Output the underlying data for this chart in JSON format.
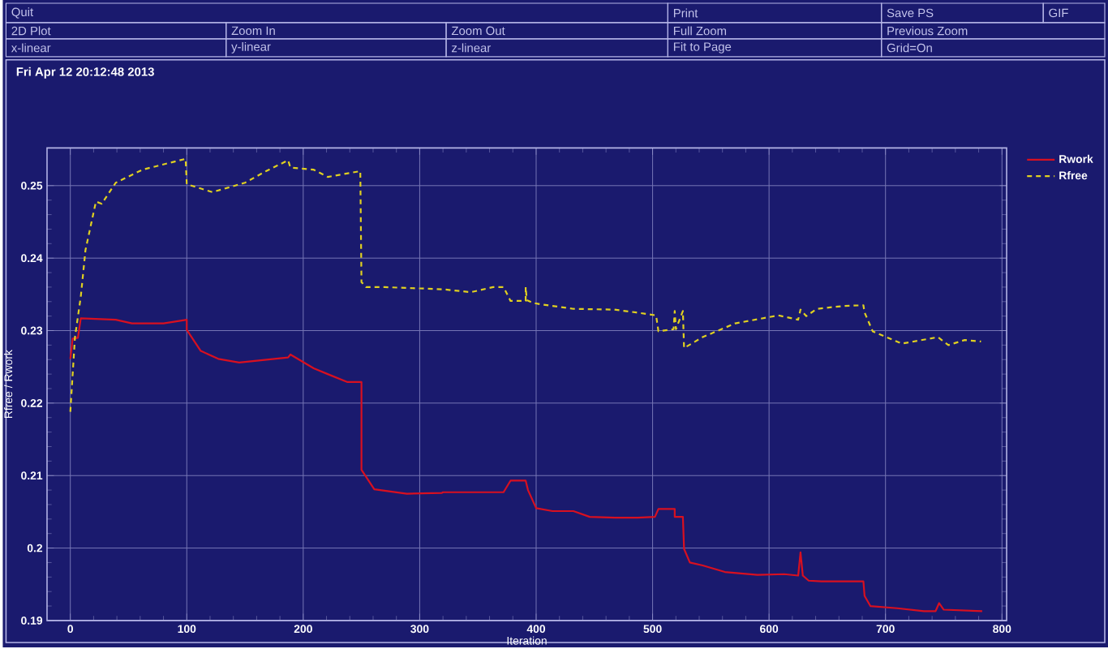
{
  "chart_data": {
    "type": "line",
    "xlabel": "Iteration",
    "ylabel": "Rfree / Rwork",
    "annotations": [
      "Quit",
      "Print",
      "Save PS",
      "GIF",
      "2D Plot",
      "Zoom In",
      "Zoom Out",
      "Full Zoom",
      "Previous Zoom",
      "x-linear",
      "y-linear",
      "z-linear",
      "Fit to Page",
      "Grid=On",
      "Fri Apr 12 20:12:48 2013"
    ],
    "xlim": [
      -20,
      804
    ],
    "ylim": [
      0.19,
      0.2552
    ],
    "xticks": [
      0,
      100,
      200,
      300,
      400,
      500,
      600,
      700,
      800
    ],
    "yticks": [
      0.19,
      0.2,
      0.21,
      0.22,
      0.23,
      0.24,
      0.25
    ],
    "grid": true,
    "legend": "right",
    "series": [
      {
        "name": "Rwork",
        "color": "#d81020",
        "line_style": "solid",
        "x": [
          0,
          2,
          6.5,
          9,
          39,
          53,
          80,
          100,
          100,
          112,
          127,
          145,
          187,
          189,
          209,
          221,
          238,
          250,
          250,
          261,
          289,
          319,
          320,
          363,
          372,
          378,
          391,
          393,
          400,
          414,
          432,
          446,
          468,
          487,
          502,
          505,
          519,
          519,
          526,
          527,
          532,
          543,
          562,
          590,
          613,
          625,
          627,
          629,
          634,
          645,
          681,
          682,
          687,
          710,
          733,
          743,
          746,
          750,
          783
        ],
        "values": [
          0.2261,
          0.2289,
          0.229,
          0.2317,
          0.2315,
          0.231,
          0.231,
          0.2315,
          0.2301,
          0.2272,
          0.2261,
          0.2256,
          0.2263,
          0.2267,
          0.2248,
          0.224,
          0.2229,
          0.2229,
          0.2108,
          0.2081,
          0.2075,
          0.2076,
          0.2077,
          0.2077,
          0.2077,
          0.2093,
          0.2093,
          0.208,
          0.2055,
          0.2051,
          0.2051,
          0.2043,
          0.2042,
          0.2042,
          0.2043,
          0.2054,
          0.2054,
          0.2043,
          0.2043,
          0.1999,
          0.198,
          0.1976,
          0.1967,
          0.1963,
          0.1964,
          0.1962,
          0.1994,
          0.1962,
          0.1955,
          0.1954,
          0.1954,
          0.1934,
          0.192,
          0.1917,
          0.1913,
          0.1913,
          0.1924,
          0.1915,
          0.1913
        ]
      },
      {
        "name": "Rfree",
        "color": "#e0d020",
        "line_style": "dashed",
        "x": [
          0,
          4,
          9,
          13,
          22,
          27,
          39,
          62,
          99,
          100,
          122,
          150,
          168,
          187,
          189,
          209,
          221,
          249,
          250,
          254,
          270,
          320,
          344,
          363,
          372,
          378,
          391,
          391,
          392,
          398,
          405,
          432,
          467,
          486,
          503,
          505,
          518,
          519,
          520,
          526,
          527,
          543,
          571,
          608,
          625,
          627,
          632,
          641,
          664,
          681,
          682,
          689,
          714,
          745,
          754,
          768,
          782
        ],
        "values": [
          0.2188,
          0.2291,
          0.2347,
          0.2411,
          0.2478,
          0.2475,
          0.2504,
          0.2522,
          0.2537,
          0.2502,
          0.2491,
          0.2504,
          0.252,
          0.2535,
          0.2525,
          0.2522,
          0.2512,
          0.252,
          0.2367,
          0.236,
          0.236,
          0.2357,
          0.2353,
          0.236,
          0.236,
          0.2341,
          0.2341,
          0.236,
          0.2342,
          0.2338,
          0.2336,
          0.233,
          0.2329,
          0.2325,
          0.2321,
          0.2299,
          0.2302,
          0.2327,
          0.2302,
          0.2327,
          0.2276,
          0.2291,
          0.231,
          0.2321,
          0.2315,
          0.2329,
          0.232,
          0.233,
          0.2334,
          0.2335,
          0.2325,
          0.2299,
          0.2282,
          0.2291,
          0.228,
          0.2287,
          0.2285
        ]
      }
    ]
  }
}
